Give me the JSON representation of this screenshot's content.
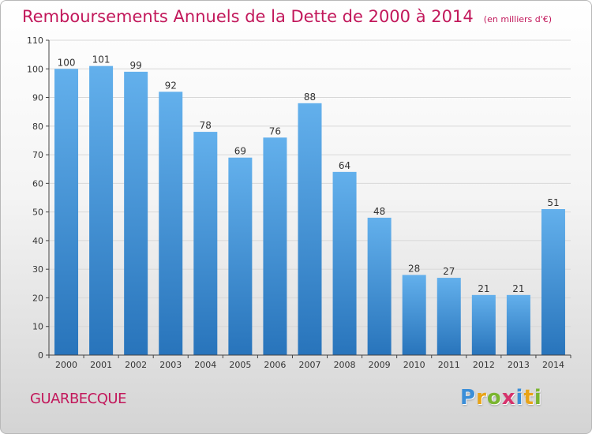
{
  "header": {
    "title": "Remboursements Annuels de la Dette de 2000 à 2014",
    "unit_note": "(en milliers d'€)"
  },
  "footer": {
    "place": "GUARBECQUE",
    "logo_text": "Proxiti",
    "logo_letter_colors": [
      "#3b8ed8",
      "#e8a317",
      "#7ab52f",
      "#d6336c",
      "#3b8ed8",
      "#e8a317",
      "#7ab52f"
    ]
  },
  "colors": {
    "bar_top": "#63b0ec",
    "bar_bottom": "#2874bb",
    "accent": "#c2185b",
    "grid": "#d8d8d8"
  },
  "chart_data": {
    "type": "bar",
    "title": "Remboursements Annuels de la Dette de 2000 à 2014",
    "subtitle": "(en milliers d'€)",
    "xlabel": "",
    "ylabel": "",
    "categories": [
      "2000",
      "2001",
      "2002",
      "2003",
      "2004",
      "2005",
      "2006",
      "2007",
      "2008",
      "2009",
      "2010",
      "2011",
      "2012",
      "2013",
      "2014"
    ],
    "values": [
      100,
      101,
      99,
      92,
      78,
      69,
      76,
      88,
      64,
      48,
      28,
      27,
      21,
      21,
      51
    ],
    "ylim": [
      0,
      110
    ],
    "yticks": [
      0,
      10,
      20,
      30,
      40,
      50,
      60,
      70,
      80,
      90,
      100,
      110
    ],
    "grid": true,
    "data_labels": true
  }
}
